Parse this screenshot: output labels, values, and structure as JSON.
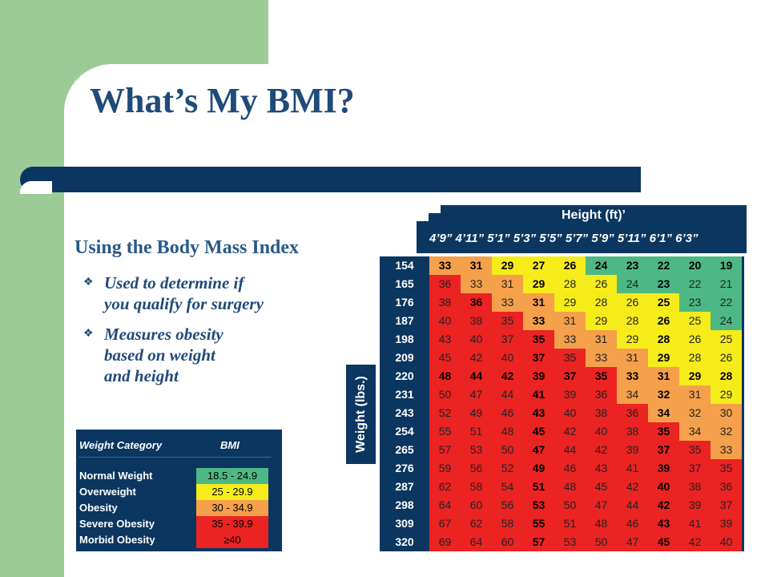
{
  "slide": {
    "title": "What’s My BMI?",
    "subtitle": "Using the Body Mass Index",
    "bullets": [
      "Used to determine if\nyou qualify for surgery",
      "Measures obesity\nbased on weight\nand height"
    ],
    "bullet_icon": "diamond-bullet-icon"
  },
  "category_table": {
    "headers": [
      "Weight Category",
      "BMI"
    ],
    "rows": [
      {
        "category": "Normal Weight",
        "bmi": "18.5 - 24.9",
        "color": "#4db884"
      },
      {
        "category": "Overweight",
        "bmi": "25 - 29.9",
        "color": "#f5ec1a"
      },
      {
        "category": "Obesity",
        "bmi": "30 - 34.9",
        "color": "#f5a04b"
      },
      {
        "category": "Severe Obesity",
        "bmi": "35 - 39.9",
        "color": "#ec2323"
      },
      {
        "category": "Morbid Obesity",
        "bmi": "≥40",
        "color": "#ec2323"
      }
    ]
  },
  "bmi_chart": {
    "height_label": "Height (ft)’",
    "weight_label": "Weight (lbs.)",
    "height_ticks": "4’9”  4’11”  5’1”  5’3”  5’5”  5’7”  5’9”  5’11”  6’1”  6’3”",
    "colors": {
      "green": "#4db884",
      "yellow": "#f5ec1a",
      "orange": "#f5a04b",
      "red": "#ec2323"
    },
    "rows": [
      {
        "weight": "154",
        "values": [
          33,
          31,
          29,
          27,
          26,
          24,
          23,
          22,
          20,
          19
        ],
        "bold": [
          1,
          1,
          1,
          1,
          1,
          1,
          1,
          1,
          1,
          1
        ]
      },
      {
        "weight": "165",
        "values": [
          36,
          33,
          31,
          29,
          28,
          26,
          24,
          23,
          22,
          21
        ],
        "bold": [
          0,
          0,
          0,
          1,
          0,
          0,
          0,
          1,
          0,
          0
        ]
      },
      {
        "weight": "176",
        "values": [
          38,
          36,
          33,
          31,
          29,
          28,
          26,
          25,
          23,
          22
        ],
        "bold": [
          0,
          1,
          0,
          1,
          0,
          0,
          0,
          1,
          0,
          0
        ]
      },
      {
        "weight": "187",
        "values": [
          40,
          38,
          35,
          33,
          31,
          29,
          28,
          26,
          25,
          24
        ],
        "bold": [
          0,
          0,
          0,
          1,
          0,
          0,
          0,
          1,
          0,
          0
        ]
      },
      {
        "weight": "198",
        "values": [
          43,
          40,
          37,
          35,
          33,
          31,
          29,
          28,
          26,
          25
        ],
        "bold": [
          0,
          0,
          0,
          1,
          0,
          0,
          0,
          1,
          0,
          0
        ]
      },
      {
        "weight": "209",
        "values": [
          45,
          42,
          40,
          37,
          35,
          33,
          31,
          29,
          28,
          26
        ],
        "bold": [
          0,
          0,
          0,
          1,
          0,
          0,
          0,
          1,
          0,
          0
        ]
      },
      {
        "weight": "220",
        "values": [
          48,
          44,
          42,
          39,
          37,
          35,
          33,
          31,
          29,
          28
        ],
        "bold": [
          1,
          1,
          1,
          1,
          1,
          1,
          1,
          1,
          1,
          1
        ]
      },
      {
        "weight": "231",
        "values": [
          50,
          47,
          44,
          41,
          39,
          36,
          34,
          32,
          31,
          29
        ],
        "bold": [
          0,
          0,
          0,
          1,
          0,
          0,
          0,
          1,
          0,
          0
        ]
      },
      {
        "weight": "243",
        "values": [
          52,
          49,
          46,
          43,
          40,
          38,
          36,
          34,
          32,
          30
        ],
        "bold": [
          0,
          0,
          0,
          1,
          0,
          0,
          0,
          1,
          0,
          0
        ]
      },
      {
        "weight": "254",
        "values": [
          55,
          51,
          48,
          45,
          42,
          40,
          38,
          35,
          34,
          32
        ],
        "bold": [
          0,
          0,
          0,
          1,
          0,
          0,
          0,
          1,
          0,
          0
        ]
      },
      {
        "weight": "265",
        "values": [
          57,
          53,
          50,
          47,
          44,
          42,
          39,
          37,
          35,
          33
        ],
        "bold": [
          0,
          0,
          0,
          1,
          0,
          0,
          0,
          1,
          0,
          0
        ]
      },
      {
        "weight": "276",
        "values": [
          59,
          56,
          52,
          49,
          46,
          43,
          41,
          39,
          37,
          35
        ],
        "bold": [
          0,
          0,
          0,
          1,
          0,
          0,
          0,
          1,
          0,
          0
        ]
      },
      {
        "weight": "287",
        "values": [
          62,
          58,
          54,
          51,
          48,
          45,
          42,
          40,
          38,
          36
        ],
        "bold": [
          0,
          0,
          0,
          1,
          0,
          0,
          0,
          1,
          0,
          0
        ]
      },
      {
        "weight": "298",
        "values": [
          64,
          60,
          56,
          53,
          50,
          47,
          44,
          42,
          39,
          37
        ],
        "bold": [
          0,
          0,
          0,
          1,
          0,
          0,
          0,
          1,
          0,
          0
        ]
      },
      {
        "weight": "309",
        "values": [
          67,
          62,
          58,
          55,
          51,
          48,
          46,
          43,
          41,
          39
        ],
        "bold": [
          0,
          0,
          0,
          1,
          0,
          0,
          0,
          1,
          0,
          0
        ]
      },
      {
        "weight": "320",
        "values": [
          69,
          64,
          60,
          57,
          53,
          50,
          47,
          45,
          42,
          40
        ],
        "bold": [
          0,
          0,
          0,
          1,
          0,
          0,
          0,
          1,
          0,
          0
        ]
      }
    ]
  }
}
